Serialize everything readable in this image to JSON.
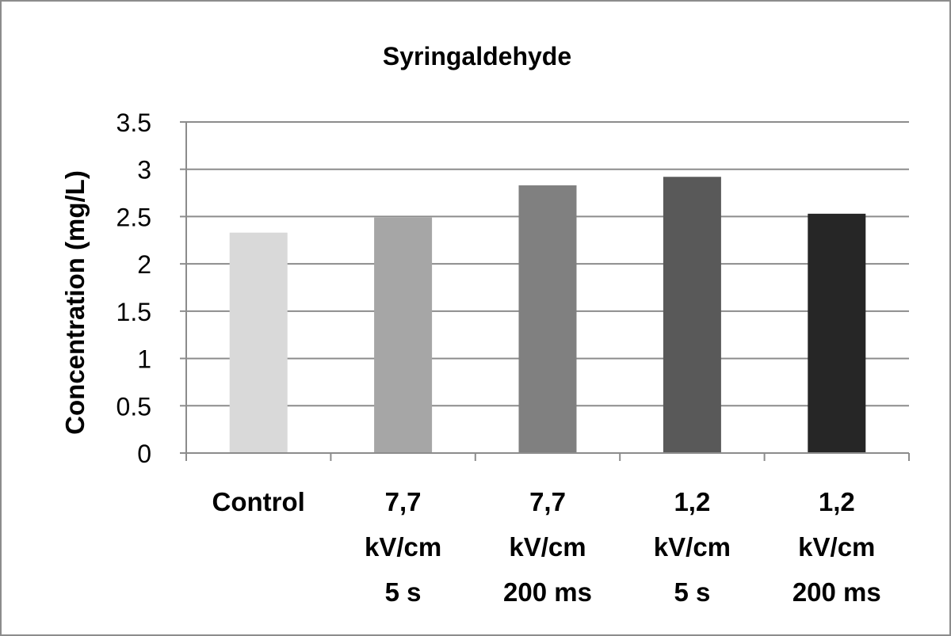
{
  "chart_data": {
    "type": "bar",
    "title": "Syringaldehyde",
    "ylabel": "Concentration (mg/L)",
    "xlabel": "",
    "ylim": [
      0,
      3.5
    ],
    "yticks": [
      "0",
      "0.5",
      "1",
      "1.5",
      "2",
      "2.5",
      "3",
      "3.5"
    ],
    "grid": true,
    "legend": "none",
    "categories": [
      [
        "Control"
      ],
      [
        "7,7",
        "kV/cm",
        "5 s"
      ],
      [
        "7,7",
        "kV/cm",
        "200 ms"
      ],
      [
        "1,2",
        "kV/cm",
        "5 s"
      ],
      [
        "1,2",
        "kV/cm",
        "200 ms"
      ]
    ],
    "values": [
      2.33,
      2.49,
      2.83,
      2.92,
      2.53
    ],
    "colors": [
      "#d9d9d9",
      "#a6a6a6",
      "#808080",
      "#595959",
      "#262626"
    ],
    "gridColor": "#8c8c8c"
  }
}
